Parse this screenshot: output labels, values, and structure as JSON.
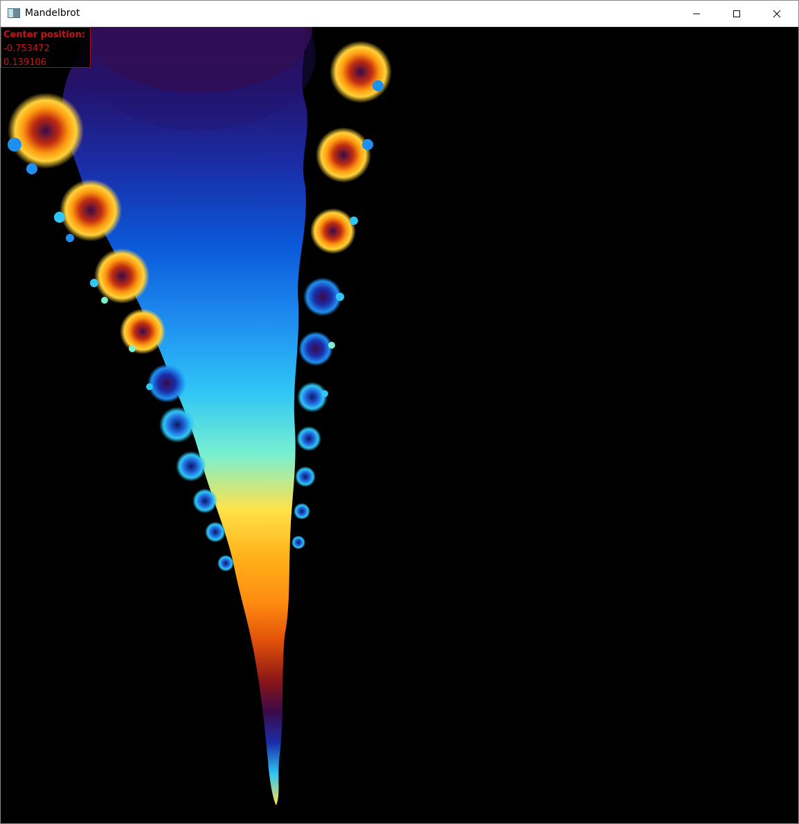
{
  "window": {
    "title": "Mandelbrot",
    "controls": {
      "minimize_icon": "minimize-icon",
      "maximize_icon": "maximize-icon",
      "close_icon": "close-icon"
    }
  },
  "overlay": {
    "label": "Center position:",
    "x": "-0.753472",
    "y": "0.139106",
    "text_color": "#c81414",
    "border_color": "#a01010"
  },
  "render": {
    "background": "#000000",
    "palette": [
      "#3a0a4a",
      "#23136e",
      "#1a2ea8",
      "#0b58d8",
      "#1f8ff0",
      "#30c6f5",
      "#7af0d0",
      "#ffd23a",
      "#ff9a10",
      "#e0500a",
      "#8a1616",
      "#3a0a4a"
    ]
  }
}
